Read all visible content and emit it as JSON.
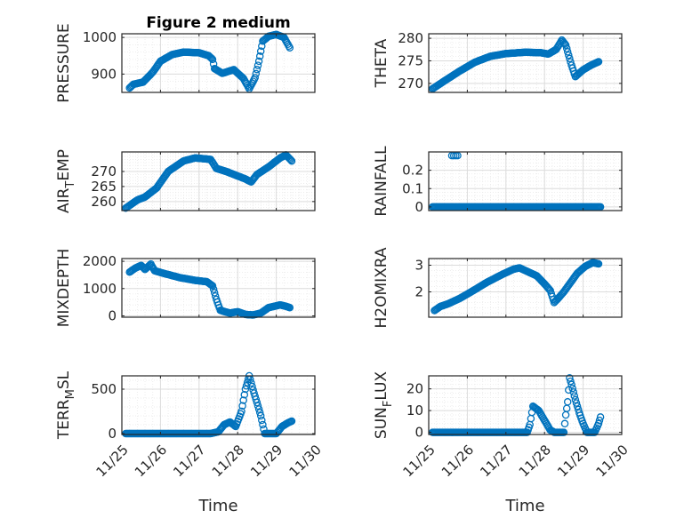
{
  "figure": {
    "title": "Figure 2 medium"
  },
  "colors": {
    "marker": "#0072BD",
    "axis": "#262626",
    "grid_major": "#dcdcdc",
    "grid_minor": "#e9e9e9"
  },
  "chart_data": [
    {
      "type": "scatter",
      "id": "pressure",
      "ylabel": "PRESSURE",
      "ylim": [
        850,
        1010
      ],
      "yticks": [
        900,
        1000
      ],
      "ytick_labels": [
        "900",
        "1000"
      ],
      "xlim": [
        0,
        5
      ],
      "xtick_labels": [],
      "xlabel": "",
      "title": "Figure 2 medium",
      "grid": true,
      "marker": "circle",
      "curve": [
        [
          0.2,
          862
        ],
        [
          0.3,
          872
        ],
        [
          0.55,
          878
        ],
        [
          0.8,
          905
        ],
        [
          1.0,
          935
        ],
        [
          1.3,
          953
        ],
        [
          1.6,
          960
        ],
        [
          2.0,
          958
        ],
        [
          2.25,
          950
        ],
        [
          2.35,
          940
        ],
        [
          2.4,
          915
        ],
        [
          2.6,
          902
        ],
        [
          2.9,
          912
        ],
        [
          3.15,
          888
        ],
        [
          3.3,
          860
        ],
        [
          3.45,
          890
        ],
        [
          3.55,
          935
        ],
        [
          3.65,
          990
        ],
        [
          3.8,
          1003
        ],
        [
          4.0,
          1008
        ],
        [
          4.2,
          1000
        ],
        [
          4.35,
          972
        ]
      ]
    },
    {
      "type": "scatter",
      "id": "theta",
      "ylabel": "THETA",
      "ylim": [
        268,
        281
      ],
      "yticks": [
        270,
        275,
        280
      ],
      "ytick_labels": [
        "270",
        "275",
        "280"
      ],
      "xlim": [
        0,
        5
      ],
      "xtick_labels": [],
      "xlabel": "",
      "grid": true,
      "marker": "circle",
      "curve": [
        [
          0.1,
          268.8
        ],
        [
          0.4,
          270.5
        ],
        [
          0.8,
          272.7
        ],
        [
          1.2,
          274.7
        ],
        [
          1.6,
          276.0
        ],
        [
          2.0,
          276.6
        ],
        [
          2.5,
          276.9
        ],
        [
          2.9,
          276.8
        ],
        [
          3.1,
          276.5
        ],
        [
          3.3,
          277.5
        ],
        [
          3.45,
          279.6
        ],
        [
          3.55,
          278.5
        ],
        [
          3.7,
          274.0
        ],
        [
          3.8,
          271.5
        ],
        [
          4.0,
          273.0
        ],
        [
          4.2,
          274.0
        ],
        [
          4.4,
          274.8
        ]
      ]
    },
    {
      "type": "scatter",
      "id": "air_temp",
      "ylabel": "AIR",
      "ylabel_sub": "T",
      "ylabel_after": "EMP",
      "ylim": [
        257,
        276.5
      ],
      "yticks": [
        260,
        265,
        270
      ],
      "ytick_labels": [
        "260",
        "265",
        "270"
      ],
      "xlim": [
        0,
        5
      ],
      "xtick_labels": [],
      "xlabel": "",
      "grid": true,
      "marker": "circle",
      "curve": [
        [
          0.1,
          257.8
        ],
        [
          0.4,
          260.5
        ],
        [
          0.6,
          261.5
        ],
        [
          0.9,
          264.5
        ],
        [
          1.2,
          270.0
        ],
        [
          1.6,
          273.5
        ],
        [
          1.9,
          274.5
        ],
        [
          2.3,
          274.0
        ],
        [
          2.45,
          271.0
        ],
        [
          2.7,
          270.0
        ],
        [
          2.9,
          269.0
        ],
        [
          3.2,
          267.5
        ],
        [
          3.35,
          266.5
        ],
        [
          3.5,
          269.0
        ],
        [
          3.8,
          271.5
        ],
        [
          4.1,
          274.5
        ],
        [
          4.25,
          275.5
        ],
        [
          4.4,
          273.5
        ]
      ]
    },
    {
      "type": "scatter",
      "id": "rainfall",
      "ylabel": "RAINFALL",
      "ylim": [
        -0.02,
        0.3
      ],
      "yticks": [
        0,
        0.1,
        0.2
      ],
      "ytick_labels": [
        "0",
        "0.1",
        "0.2"
      ],
      "xlim": [
        0,
        5
      ],
      "xtick_labels": [],
      "xlabel": "",
      "grid": true,
      "marker": "circle",
      "curve": [
        [
          0.1,
          0
        ],
        [
          4.45,
          0
        ]
      ],
      "extra_points": [
        [
          0.6,
          0.28
        ],
        [
          0.65,
          0.28
        ],
        [
          0.7,
          0.28
        ],
        [
          0.75,
          0.28
        ]
      ]
    },
    {
      "type": "scatter",
      "id": "mixdepth",
      "ylabel": "MIXDEPTH",
      "ylim": [
        -50,
        2100
      ],
      "yticks": [
        0,
        1000,
        2000
      ],
      "ytick_labels": [
        "0",
        "1000",
        "2000"
      ],
      "xlim": [
        0,
        5
      ],
      "xtick_labels": [],
      "xlabel": "",
      "grid": true,
      "marker": "circle",
      "curve": [
        [
          0.2,
          1600
        ],
        [
          0.35,
          1750
        ],
        [
          0.5,
          1850
        ],
        [
          0.6,
          1700
        ],
        [
          0.75,
          1900
        ],
        [
          0.85,
          1650
        ],
        [
          1.1,
          1550
        ],
        [
          1.5,
          1400
        ],
        [
          1.9,
          1300
        ],
        [
          2.2,
          1250
        ],
        [
          2.35,
          1100
        ],
        [
          2.45,
          600
        ],
        [
          2.55,
          200
        ],
        [
          2.8,
          100
        ],
        [
          3.0,
          150
        ],
        [
          3.2,
          50
        ],
        [
          3.4,
          30
        ],
        [
          3.6,
          100
        ],
        [
          3.8,
          300
        ],
        [
          4.1,
          400
        ],
        [
          4.25,
          350
        ],
        [
          4.35,
          300
        ]
      ]
    },
    {
      "type": "scatter",
      "id": "h2omixra",
      "ylabel": "H2OMIXRA",
      "ylim": [
        1.05,
        3.25
      ],
      "yticks": [
        2,
        3
      ],
      "ytick_labels": [
        "2",
        "3"
      ],
      "xlim": [
        0,
        5
      ],
      "xtick_labels": [],
      "xlabel": "",
      "grid": true,
      "marker": "circle",
      "curve": [
        [
          0.15,
          1.3
        ],
        [
          0.3,
          1.45
        ],
        [
          0.5,
          1.55
        ],
        [
          0.8,
          1.75
        ],
        [
          1.1,
          2.0
        ],
        [
          1.5,
          2.35
        ],
        [
          1.9,
          2.65
        ],
        [
          2.2,
          2.85
        ],
        [
          2.35,
          2.9
        ],
        [
          2.5,
          2.8
        ],
        [
          2.8,
          2.6
        ],
        [
          3.0,
          2.3
        ],
        [
          3.15,
          2.05
        ],
        [
          3.25,
          1.6
        ],
        [
          3.35,
          1.75
        ],
        [
          3.5,
          2.0
        ],
        [
          3.7,
          2.4
        ],
        [
          3.85,
          2.7
        ],
        [
          4.05,
          2.95
        ],
        [
          4.25,
          3.1
        ],
        [
          4.4,
          3.05
        ]
      ]
    },
    {
      "type": "scatter",
      "id": "terr_msl",
      "ylabel": "TERR",
      "ylabel_sub": "M",
      "ylabel_after": "SL",
      "ylim": [
        -10,
        650
      ],
      "yticks": [
        0,
        500
      ],
      "ytick_labels": [
        "0",
        "500"
      ],
      "xlim": [
        0,
        5
      ],
      "xtick_positions": [
        0,
        1,
        2,
        3,
        4,
        5
      ],
      "xtick_labels": [
        "11/25",
        "11/26",
        "11/27",
        "11/28",
        "11/29",
        "11/30"
      ],
      "xlabel": "Time",
      "grid": true,
      "marker": "circle",
      "curve": [
        [
          0.1,
          0
        ],
        [
          2.3,
          0
        ],
        [
          2.5,
          20
        ],
        [
          2.65,
          100
        ],
        [
          2.8,
          130
        ],
        [
          2.95,
          80
        ],
        [
          3.1,
          250
        ],
        [
          3.2,
          500
        ],
        [
          3.3,
          650
        ],
        [
          3.4,
          490
        ],
        [
          3.5,
          350
        ],
        [
          3.6,
          200
        ],
        [
          3.7,
          0
        ],
        [
          3.85,
          0
        ],
        [
          4.0,
          0
        ],
        [
          4.15,
          80
        ],
        [
          4.3,
          120
        ],
        [
          4.4,
          140
        ]
      ]
    },
    {
      "type": "scatter",
      "id": "sun_flux",
      "ylabel": "SUN",
      "ylabel_sub": "F",
      "ylabel_after": "LUX",
      "ylim": [
        -1,
        26
      ],
      "yticks": [
        0,
        10,
        20
      ],
      "ytick_labels": [
        "0",
        "10",
        "20"
      ],
      "xlim": [
        0,
        5
      ],
      "xtick_positions": [
        0,
        1,
        2,
        3,
        4,
        5
      ],
      "xtick_labels": [
        "11/25",
        "11/26",
        "11/27",
        "11/28",
        "11/29",
        "11/30"
      ],
      "xlabel": "Time",
      "grid": true,
      "marker": "circle",
      "curve": [
        [
          0.1,
          0
        ],
        [
          2.55,
          0
        ],
        [
          2.62,
          3.5
        ],
        [
          2.7,
          12
        ],
        [
          2.85,
          10
        ],
        [
          3.0,
          5.5
        ],
        [
          3.15,
          1
        ],
        [
          3.25,
          0
        ],
        [
          3.35,
          0
        ],
        [
          3.5,
          0
        ],
        [
          3.55,
          8
        ],
        [
          3.6,
          14
        ],
        [
          3.65,
          25
        ],
        [
          3.7,
          22
        ],
        [
          3.8,
          15
        ],
        [
          3.9,
          9
        ],
        [
          4.0,
          4
        ],
        [
          4.1,
          0
        ],
        [
          4.3,
          0
        ],
        [
          4.4,
          4
        ],
        [
          4.45,
          7
        ]
      ]
    }
  ]
}
